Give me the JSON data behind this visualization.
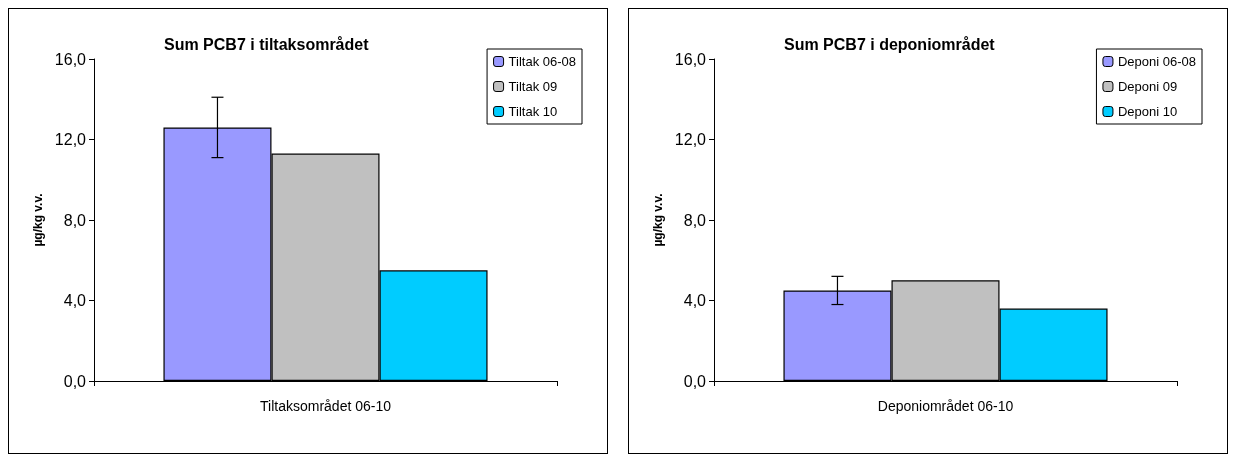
{
  "chart_data": [
    {
      "type": "bar",
      "title": "Sum PCB7 i tiltaksområdet",
      "ylabel": "µg/kg v.v.",
      "categories": [
        "Tiltaksområdet 06-10"
      ],
      "ylim": [
        0,
        16
      ],
      "yticks": [
        {
          "value": 0,
          "label": "0,0"
        },
        {
          "value": 4,
          "label": "4,0"
        },
        {
          "value": 8,
          "label": "8,0"
        },
        {
          "value": 12,
          "label": "12,0"
        },
        {
          "value": 16,
          "label": "16,0"
        }
      ],
      "grid": false,
      "legend": "top right",
      "series": [
        {
          "name": "Tiltak 06-08",
          "color": "#9999ff",
          "values": [
            12.6
          ],
          "errors": [
            1.5
          ]
        },
        {
          "name": "Tiltak 09",
          "color": "#c0c0c0",
          "values": [
            11.3
          ]
        },
        {
          "name": "Tiltak 10",
          "color": "#00ccff",
          "values": [
            5.5
          ]
        }
      ]
    },
    {
      "type": "bar",
      "title": "Sum PCB7 i deponiområdet",
      "ylabel": "µg/kg v.v.",
      "categories": [
        "Deponiområdet 06-10"
      ],
      "ylim": [
        0,
        16
      ],
      "yticks": [
        {
          "value": 0,
          "label": "0,0"
        },
        {
          "value": 4,
          "label": "4,0"
        },
        {
          "value": 8,
          "label": "8,0"
        },
        {
          "value": 12,
          "label": "12,0"
        },
        {
          "value": 16,
          "label": "16,0"
        }
      ],
      "grid": false,
      "legend": "top right",
      "series": [
        {
          "name": "Deponi 06-08",
          "color": "#9999ff",
          "values": [
            4.5
          ],
          "errors": [
            0.7
          ]
        },
        {
          "name": "Deponi 09",
          "color": "#c0c0c0",
          "values": [
            5.0
          ]
        },
        {
          "name": "Deponi 10",
          "color": "#00ccff",
          "values": [
            3.6
          ]
        }
      ]
    }
  ]
}
